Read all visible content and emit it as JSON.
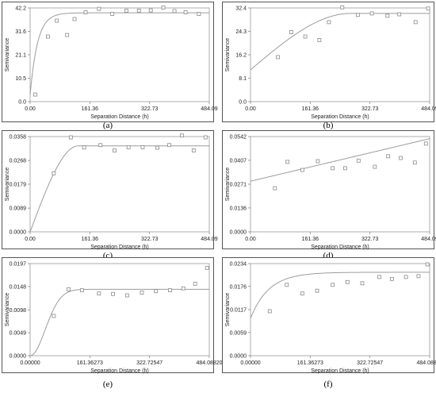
{
  "chart_data": [
    {
      "type": "scatter",
      "caption": "(a)",
      "xlabel": "Separation Distance (h)",
      "ylabel": "Semivariance",
      "xlim": [
        0,
        484.09
      ],
      "ylim": [
        0,
        42.2
      ],
      "x_ticks": [
        "0.00",
        "161.36",
        "322.73",
        "484.09"
      ],
      "y_ticks": [
        "0.0",
        "10.5",
        "21.1",
        "31.6",
        "42.2"
      ],
      "points": {
        "x": [
          14,
          48,
          72,
          100,
          120,
          150,
          186,
          222,
          260,
          294,
          326,
          360,
          390,
          420,
          456
        ],
        "y": [
          3.2,
          29.3,
          36.5,
          30.0,
          37.2,
          40.2,
          41.8,
          39.5,
          41.0,
          41.0,
          41.1,
          42.4,
          40.8,
          40.2,
          39.5
        ]
      },
      "model": {
        "form": "exponential",
        "nugget": 3.0,
        "sill": 40.0,
        "range": 60
      }
    },
    {
      "type": "scatter",
      "caption": "(b)",
      "xlabel": "Separation Distance (h)",
      "ylabel": "Semivariance",
      "xlim": [
        0,
        484.09
      ],
      "ylim": [
        0,
        32.4
      ],
      "x_ticks": [
        "0.00",
        "161.36",
        "322.73",
        "484.09"
      ],
      "y_ticks": [
        "0.0",
        "8.1",
        "16.2",
        "24.3",
        "32.4"
      ],
      "points": {
        "x": [
          74,
          110,
          148,
          186,
          212,
          248,
          290,
          328,
          370,
          402,
          446,
          480
        ],
        "y": [
          15.4,
          24.0,
          22.5,
          21.3,
          27.5,
          32.6,
          30.0,
          30.5,
          29.7,
          30.2,
          27.5,
          32.2
        ]
      },
      "model": {
        "form": "spherical",
        "nugget": 11.0,
        "sill": 30.5,
        "range": 270
      }
    },
    {
      "type": "scatter",
      "caption": "(c)",
      "xlabel": "Separation Distance (h)",
      "ylabel": "Semivariance",
      "xlim": [
        0,
        484.09
      ],
      "ylim": [
        0,
        0.0358
      ],
      "x_ticks": [
        "0.00",
        "161.36",
        "322.73",
        "484.09"
      ],
      "y_ticks": [
        "0.0000",
        "0.0089",
        "0.0179",
        "0.0268",
        "0.0358"
      ],
      "points": {
        "x": [
          64,
          110,
          146,
          190,
          228,
          266,
          304,
          344,
          376,
          410,
          442,
          474
        ],
        "y": [
          0.022,
          0.0355,
          0.0317,
          0.0326,
          0.0306,
          0.0318,
          0.0318,
          0.0316,
          0.0326,
          0.0362,
          0.0306,
          0.0355
        ]
      },
      "model": {
        "form": "spherical",
        "nugget": 0.0,
        "sill": 0.0323,
        "range": 130
      }
    },
    {
      "type": "scatter",
      "caption": "(d)",
      "xlabel": "Separation Distance (h)",
      "ylabel": "Semivariance",
      "xlim": [
        0,
        484.09
      ],
      "ylim": [
        0,
        0.0542
      ],
      "x_ticks": [
        "0.00",
        "161.36",
        "322.73",
        "484.09"
      ],
      "y_ticks": [
        "0.0000",
        "0.0136",
        "0.0271",
        "0.0407",
        "0.0542"
      ],
      "points": {
        "x": [
          66,
          100,
          140,
          182,
          222,
          256,
          292,
          336,
          372,
          406,
          444,
          474
        ],
        "y": [
          0.0248,
          0.0398,
          0.0352,
          0.0402,
          0.0362,
          0.0362,
          0.0405,
          0.037,
          0.043,
          0.042,
          0.0394,
          0.0502
        ]
      },
      "model": {
        "form": "linear",
        "nugget": 0.0288,
        "slope": 5e-05
      }
    },
    {
      "type": "scatter",
      "caption": "(e)",
      "xlabel": "Separation Distance (h)",
      "ylabel": "Semivariance",
      "xlim": [
        0,
        484.0882
      ],
      "ylim": [
        0,
        0.0197
      ],
      "x_ticks": [
        "0.00000",
        "161.36273",
        "322.72547",
        "484.08820"
      ],
      "y_ticks": [
        "0.0000",
        "0.0049",
        "0.0098",
        "0.0148",
        "0.0197"
      ],
      "points": {
        "x": [
          64,
          104,
          140,
          186,
          224,
          262,
          302,
          340,
          378,
          414,
          446,
          478
        ],
        "y": [
          0.0085,
          0.0142,
          0.014,
          0.0133,
          0.0132,
          0.0129,
          0.0135,
          0.0138,
          0.014,
          0.0144,
          0.0154,
          0.0188
        ]
      },
      "model": {
        "form": "gaussian",
        "nugget": 0.0,
        "sill": 0.0142,
        "range": 100
      }
    },
    {
      "type": "scatter",
      "caption": "(f)",
      "xlabel": "Separation Distance (h)",
      "ylabel": "Semivariance",
      "xlim": [
        0,
        484.0882
      ],
      "ylim": [
        0,
        0.0234
      ],
      "x_ticks": [
        "0.00000",
        "161.36273",
        "322.72547",
        "484.08820"
      ],
      "y_ticks": [
        "0.0000",
        "0.0059",
        "0.0117",
        "0.0176",
        "0.0234"
      ],
      "points": {
        "x": [
          52,
          98,
          140,
          180,
          222,
          262,
          302,
          348,
          382,
          420,
          454,
          478
        ],
        "y": [
          0.0113,
          0.018,
          0.0158,
          0.0165,
          0.018,
          0.0187,
          0.0184,
          0.02,
          0.0195,
          0.02,
          0.0202,
          0.0232
        ]
      },
      "model": {
        "form": "exponential",
        "nugget": 0.0095,
        "sill": 0.0212,
        "range": 150
      }
    }
  ]
}
